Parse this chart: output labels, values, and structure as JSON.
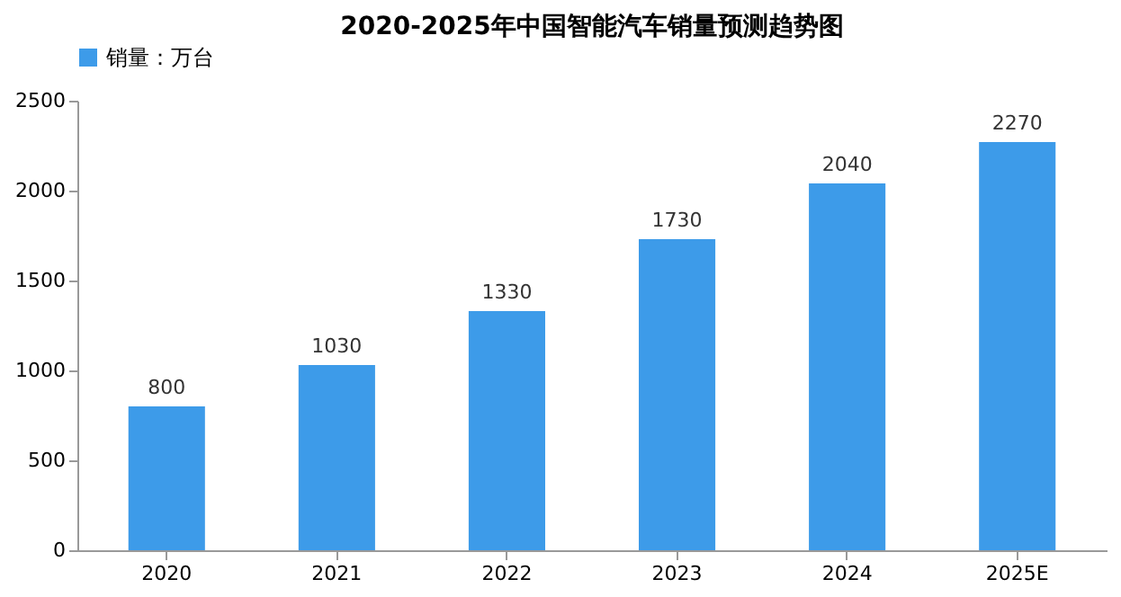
{
  "chart_data": {
    "type": "bar",
    "title": "2020-2025年中国智能汽车销量预测趋势图",
    "categories": [
      "2020",
      "2021",
      "2022",
      "2023",
      "2024",
      "2025E"
    ],
    "series": [
      {
        "name": "销量：万台",
        "color": "#3d9be9",
        "values": [
          800,
          1030,
          1330,
          1730,
          2040,
          2270
        ]
      }
    ],
    "ylim": [
      0,
      2500
    ],
    "yticks": [
      0,
      500,
      1000,
      1500,
      2000,
      2500
    ],
    "grid": false,
    "legend": "top",
    "data_labels": true
  }
}
